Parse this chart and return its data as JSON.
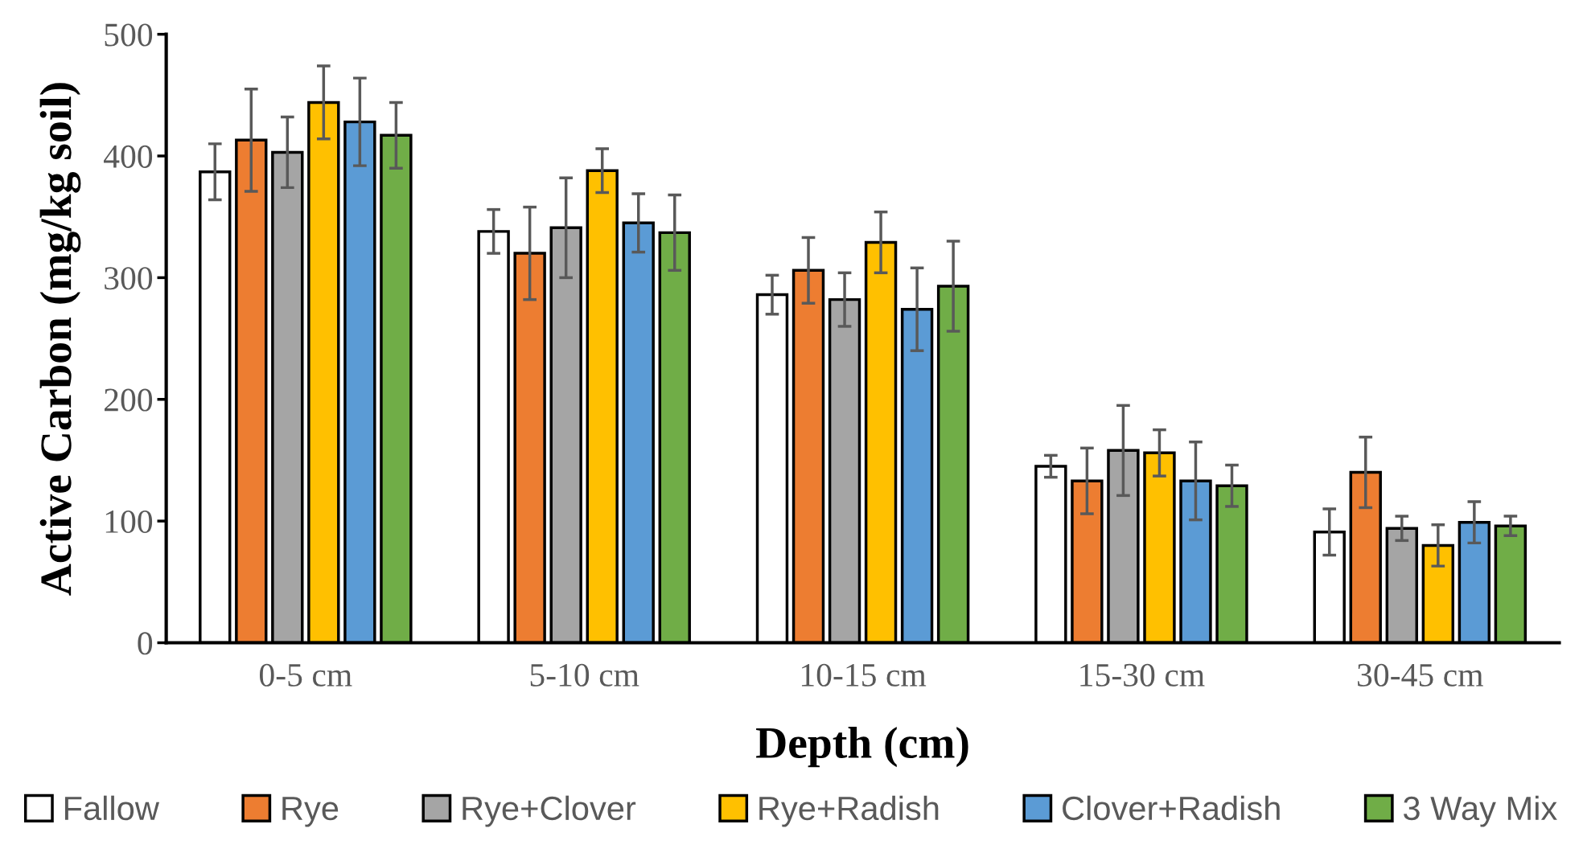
{
  "chart_data": {
    "type": "bar",
    "xlabel": "Depth (cm)",
    "ylabel": "Active Carbon (mg/kg soil)",
    "categories": [
      "0-5 cm",
      "5-10 cm",
      "10-15 cm",
      "15-30 cm",
      "30-45 cm"
    ],
    "ylim": [
      0,
      500
    ],
    "yticks": [
      0,
      100,
      200,
      300,
      400,
      500
    ],
    "grid": false,
    "legend": "bottom",
    "series": [
      {
        "name": "Fallow",
        "color": "#ffffff",
        "values": [
          387,
          338,
          286,
          145,
          91
        ],
        "errors": [
          23,
          18,
          16,
          9,
          19
        ]
      },
      {
        "name": "Rye",
        "color": "#ed7d31",
        "values": [
          413,
          320,
          306,
          133,
          140
        ],
        "errors": [
          42,
          38,
          27,
          27,
          29
        ]
      },
      {
        "name": "Rye+Clover",
        "color": "#a5a5a5",
        "values": [
          403,
          341,
          282,
          158,
          94
        ],
        "errors": [
          29,
          41,
          22,
          37,
          10
        ]
      },
      {
        "name": "Rye+Radish",
        "color": "#ffc000",
        "values": [
          444,
          388,
          329,
          156,
          80
        ],
        "errors": [
          30,
          18,
          25,
          19,
          17
        ]
      },
      {
        "name": "Clover+Radish",
        "color": "#5b9bd5",
        "values": [
          428,
          345,
          274,
          133,
          99
        ],
        "errors": [
          36,
          24,
          34,
          32,
          17
        ]
      },
      {
        "name": "3 Way Mix",
        "color": "#70ad47",
        "values": [
          417,
          337,
          293,
          129,
          96
        ],
        "errors": [
          27,
          31,
          37,
          17,
          8
        ]
      }
    ]
  }
}
